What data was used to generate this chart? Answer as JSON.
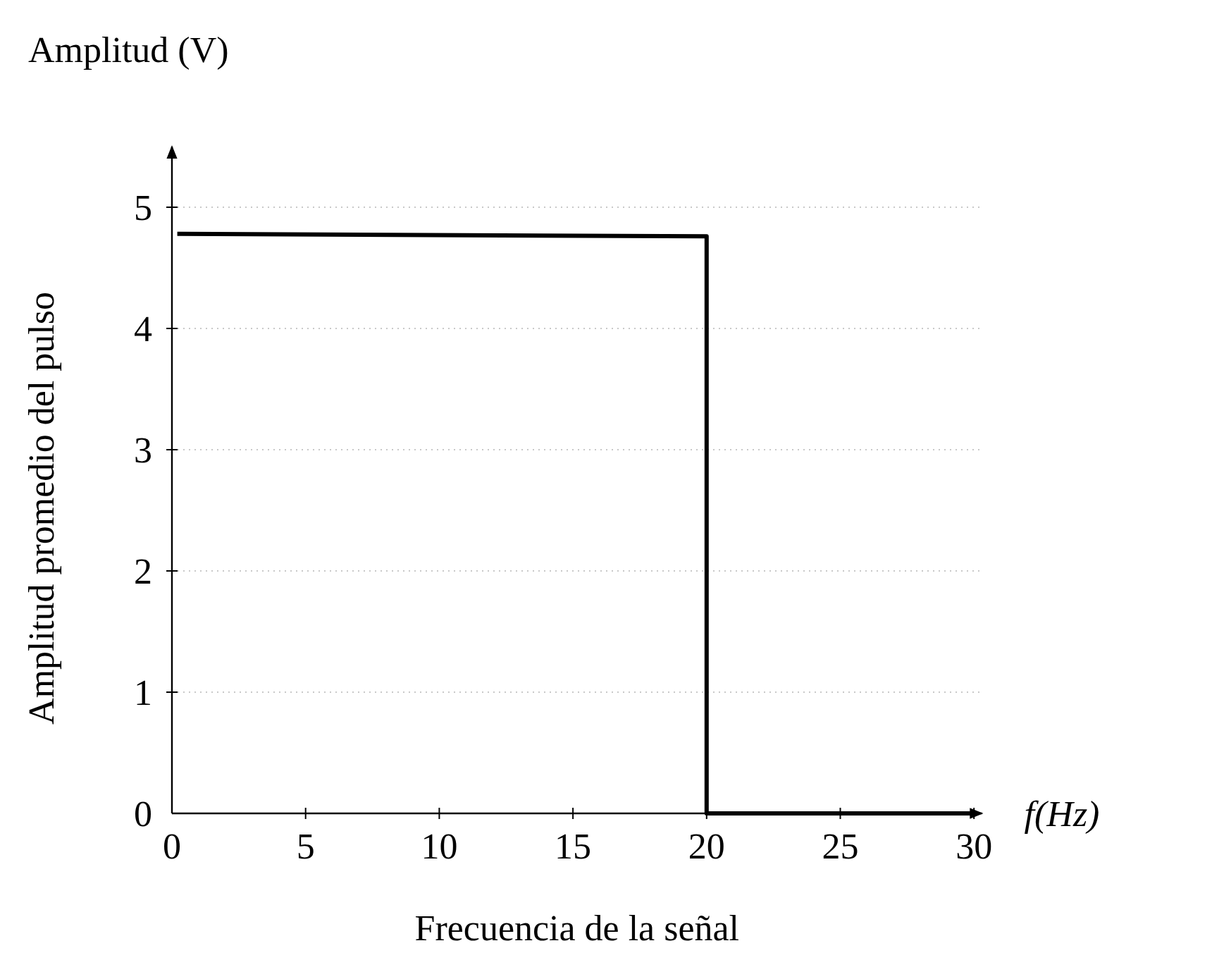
{
  "chart_data": {
    "type": "line",
    "xlabel": "Frecuencia de la señal",
    "ylabel": "Amplitud promedio del pulso",
    "annotations": [
      "Amplitud (V)",
      "f(Hz)"
    ],
    "x": [
      0.2,
      20,
      20,
      30
    ],
    "series": [
      {
        "color": "#000000",
        "values": [
          4.78,
          4.76,
          0,
          0
        ]
      }
    ],
    "xlim": [
      0,
      30.3
    ],
    "ylim": [
      0,
      5.5
    ],
    "xticks": [
      0,
      5,
      10,
      15,
      20,
      25,
      30
    ],
    "yticks": [
      0,
      1,
      2,
      3,
      4,
      5
    ],
    "grid": "y",
    "marker": "none",
    "line_style": "solid"
  }
}
